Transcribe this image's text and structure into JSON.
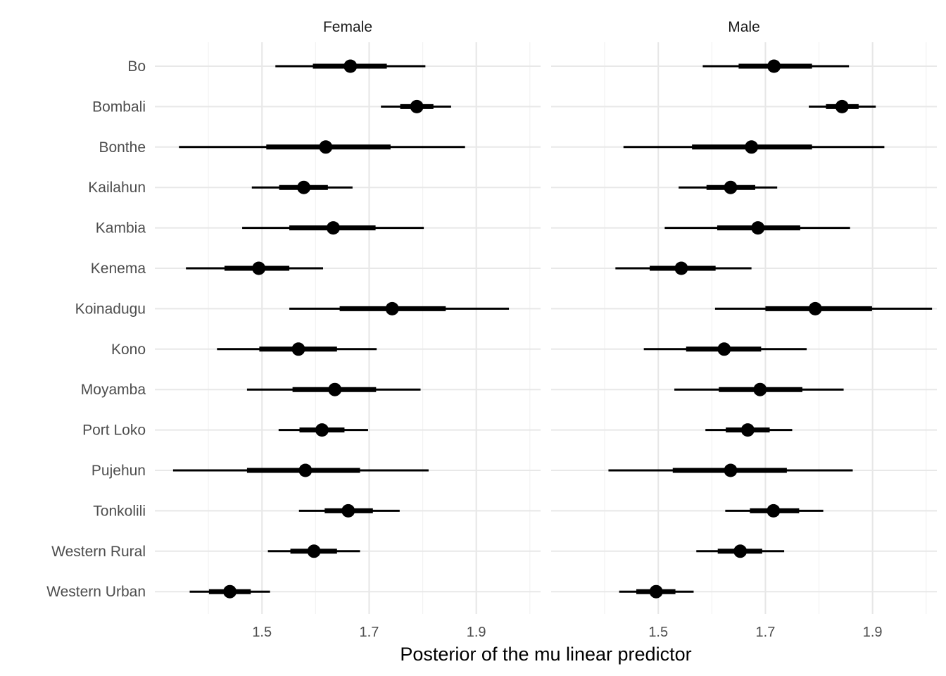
{
  "chart_data": {
    "type": "pointinterval",
    "xlabel": "Posterior of the mu linear predictor",
    "x_ticks": [
      1.5,
      1.7,
      1.9
    ],
    "xlim": [
      1.3,
      2.02
    ],
    "grid": true,
    "regions": [
      "Bo",
      "Bombali",
      "Bonthe",
      "Kailahun",
      "Kambia",
      "Kenema",
      "Koinadugu",
      "Kono",
      "Moyamba",
      "Port Loko",
      "Pujehun",
      "Tonkolili",
      "Western Rural",
      "Western Urban"
    ],
    "facets": [
      {
        "name": "Female",
        "xlim": [
          1.3,
          2.02
        ],
        "series": [
          {
            "region": "Bo",
            "point": 1.665,
            "inner": [
              1.595,
              1.733
            ],
            "outer": [
              1.525,
              1.805
            ]
          },
          {
            "region": "Bombali",
            "point": 1.789,
            "inner": [
              1.758,
              1.82
            ],
            "outer": [
              1.722,
              1.853
            ]
          },
          {
            "region": "Bonthe",
            "point": 1.619,
            "inner": [
              1.508,
              1.74
            ],
            "outer": [
              1.345,
              1.879
            ]
          },
          {
            "region": "Kailahun",
            "point": 1.578,
            "inner": [
              1.532,
              1.623
            ],
            "outer": [
              1.481,
              1.669
            ]
          },
          {
            "region": "Kambia",
            "point": 1.633,
            "inner": [
              1.551,
              1.712
            ],
            "outer": [
              1.463,
              1.802
            ]
          },
          {
            "region": "Kenema",
            "point": 1.494,
            "inner": [
              1.43,
              1.551
            ],
            "outer": [
              1.358,
              1.614
            ]
          },
          {
            "region": "Koinadugu",
            "point": 1.743,
            "inner": [
              1.645,
              1.843
            ],
            "outer": [
              1.551,
              1.961
            ]
          },
          {
            "region": "Kono",
            "point": 1.568,
            "inner": [
              1.495,
              1.64
            ],
            "outer": [
              1.416,
              1.714
            ]
          },
          {
            "region": "Moyamba",
            "point": 1.636,
            "inner": [
              1.557,
              1.713
            ],
            "outer": [
              1.472,
              1.796
            ]
          },
          {
            "region": "Port Loko",
            "point": 1.612,
            "inner": [
              1.57,
              1.654
            ],
            "outer": [
              1.531,
              1.698
            ]
          },
          {
            "region": "Pujehun",
            "point": 1.581,
            "inner": [
              1.472,
              1.683
            ],
            "outer": [
              1.334,
              1.811
            ]
          },
          {
            "region": "Tonkolili",
            "point": 1.661,
            "inner": [
              1.617,
              1.707
            ],
            "outer": [
              1.569,
              1.757
            ]
          },
          {
            "region": "Western Rural",
            "point": 1.597,
            "inner": [
              1.553,
              1.64
            ],
            "outer": [
              1.511,
              1.683
            ]
          },
          {
            "region": "Western Urban",
            "point": 1.44,
            "inner": [
              1.401,
              1.479
            ],
            "outer": [
              1.365,
              1.515
            ]
          }
        ]
      },
      {
        "name": "Male",
        "xlim": [
          1.3,
          2.02
        ],
        "series": [
          {
            "region": "Bo",
            "point": 1.716,
            "inner": [
              1.65,
              1.787
            ],
            "outer": [
              1.583,
              1.856
            ]
          },
          {
            "region": "Bombali",
            "point": 1.843,
            "inner": [
              1.813,
              1.874
            ],
            "outer": [
              1.781,
              1.906
            ]
          },
          {
            "region": "Bonthe",
            "point": 1.674,
            "inner": [
              1.563,
              1.787
            ],
            "outer": [
              1.435,
              1.922
            ]
          },
          {
            "region": "Kailahun",
            "point": 1.635,
            "inner": [
              1.59,
              1.681
            ],
            "outer": [
              1.538,
              1.722
            ]
          },
          {
            "region": "Kambia",
            "point": 1.686,
            "inner": [
              1.61,
              1.765
            ],
            "outer": [
              1.512,
              1.858
            ]
          },
          {
            "region": "Kenema",
            "point": 1.543,
            "inner": [
              1.484,
              1.607
            ],
            "outer": [
              1.42,
              1.674
            ]
          },
          {
            "region": "Koinadugu",
            "point": 1.793,
            "inner": [
              1.7,
              1.899
            ],
            "outer": [
              1.606,
              2.011
            ]
          },
          {
            "region": "Kono",
            "point": 1.623,
            "inner": [
              1.552,
              1.692
            ],
            "outer": [
              1.473,
              1.777
            ]
          },
          {
            "region": "Moyamba",
            "point": 1.69,
            "inner": [
              1.613,
              1.769
            ],
            "outer": [
              1.53,
              1.846
            ]
          },
          {
            "region": "Port Loko",
            "point": 1.667,
            "inner": [
              1.626,
              1.708
            ],
            "outer": [
              1.588,
              1.75
            ]
          },
          {
            "region": "Pujehun",
            "point": 1.635,
            "inner": [
              1.527,
              1.74
            ],
            "outer": [
              1.407,
              1.863
            ]
          },
          {
            "region": "Tonkolili",
            "point": 1.715,
            "inner": [
              1.671,
              1.763
            ],
            "outer": [
              1.625,
              1.808
            ]
          },
          {
            "region": "Western Rural",
            "point": 1.653,
            "inner": [
              1.611,
              1.694
            ],
            "outer": [
              1.571,
              1.735
            ]
          },
          {
            "region": "Western Urban",
            "point": 1.496,
            "inner": [
              1.459,
              1.532
            ],
            "outer": [
              1.427,
              1.566
            ]
          }
        ]
      }
    ]
  }
}
